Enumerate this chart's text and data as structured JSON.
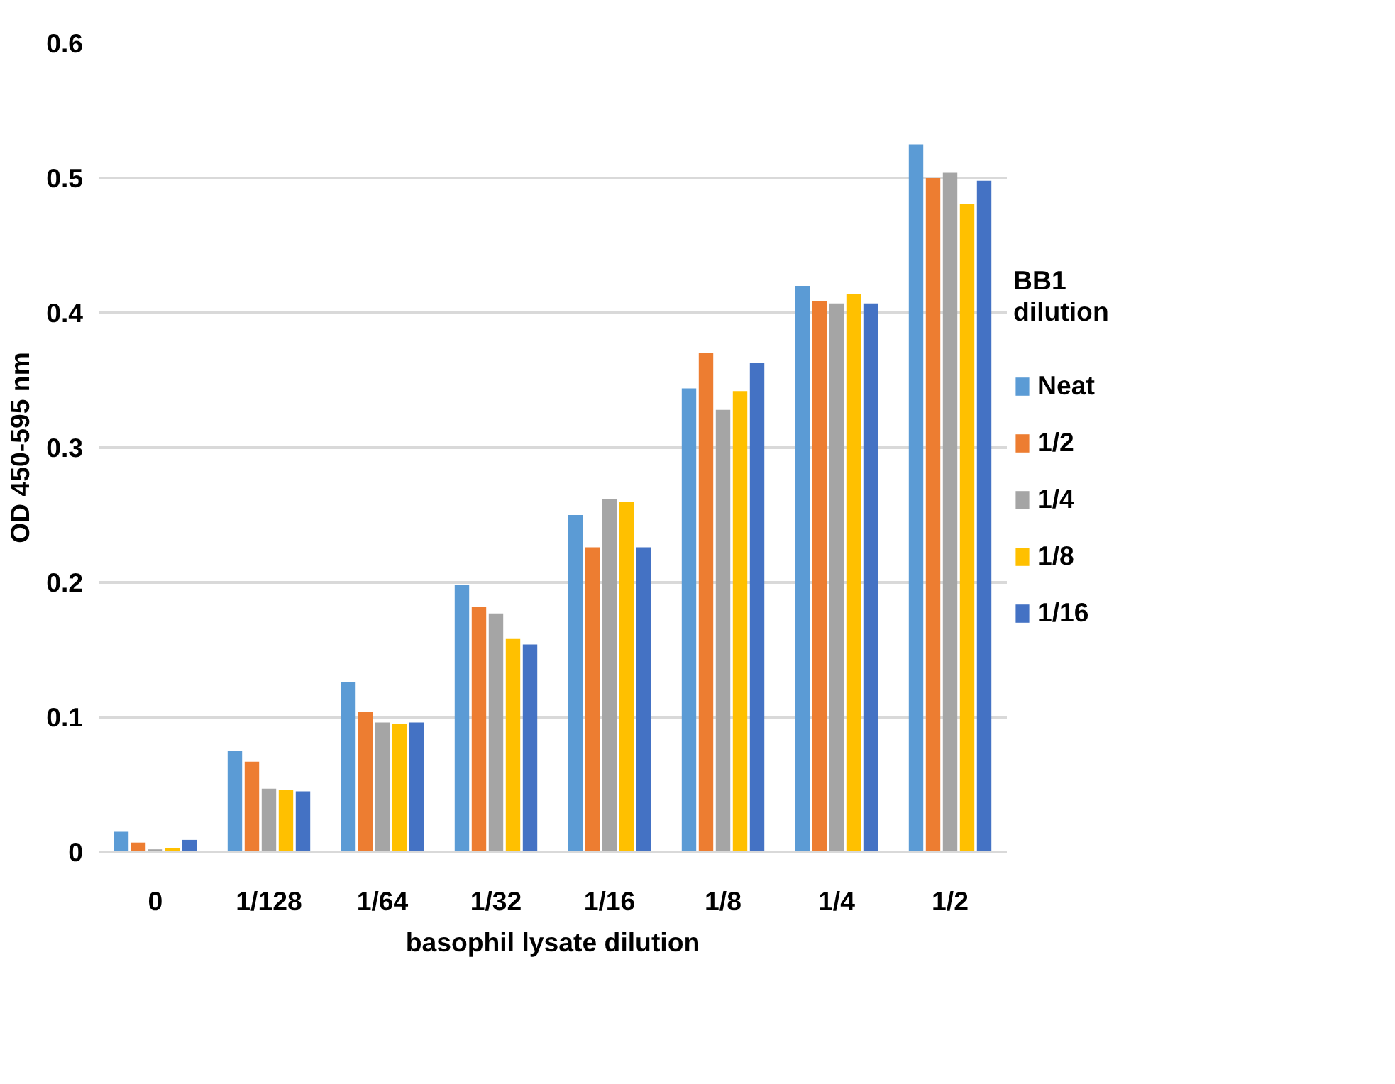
{
  "chart_data": {
    "type": "bar",
    "xlabel": "basophil lysate dilution",
    "ylabel": "OD 450-595 nm",
    "legend_title": "BB1 dilution",
    "categories": [
      "0",
      "1/128",
      "1/64",
      "1/32",
      "1/16",
      "1/8",
      "1/4",
      "1/2"
    ],
    "series": [
      {
        "name": "Neat",
        "color": "#5b9bd5",
        "values": [
          0.015,
          0.075,
          0.126,
          0.198,
          0.25,
          0.344,
          0.42,
          0.525
        ]
      },
      {
        "name": "1/2",
        "color": "#ed7d31",
        "values": [
          0.007,
          0.067,
          0.104,
          0.182,
          0.226,
          0.37,
          0.409,
          0.5
        ]
      },
      {
        "name": "1/4",
        "color": "#a5a5a5",
        "values": [
          0.002,
          0.047,
          0.096,
          0.177,
          0.262,
          0.328,
          0.407,
          0.504
        ]
      },
      {
        "name": "1/8",
        "color": "#ffc000",
        "values": [
          0.003,
          0.046,
          0.095,
          0.158,
          0.26,
          0.342,
          0.414,
          0.481
        ]
      },
      {
        "name": "1/16",
        "color": "#4472c4",
        "values": [
          0.009,
          0.045,
          0.096,
          0.154,
          0.226,
          0.363,
          0.407,
          0.498
        ]
      }
    ],
    "ylim": [
      0,
      0.6
    ],
    "yticks": [
      0,
      0.1,
      0.2,
      0.3,
      0.4,
      0.5,
      0.6
    ],
    "grid": "y",
    "legend": "right"
  }
}
